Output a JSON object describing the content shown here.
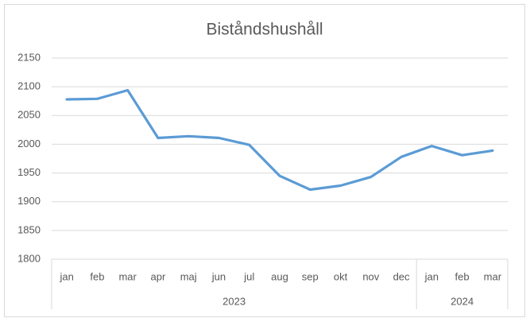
{
  "chart_data": {
    "type": "line",
    "title": "Biståndshushåll",
    "category_groups": [
      {
        "label": "2023",
        "categories": [
          "jan",
          "feb",
          "mar",
          "apr",
          "maj",
          "jun",
          "jul",
          "aug",
          "sep",
          "okt",
          "nov",
          "dec"
        ]
      },
      {
        "label": "2024",
        "categories": [
          "jan",
          "feb",
          "mar"
        ]
      }
    ],
    "values": [
      2078,
      2079,
      2094,
      2011,
      2014,
      2011,
      1999,
      1945,
      1921,
      1928,
      1943,
      1978,
      1997,
      1981,
      1989
    ],
    "color": "#5b9bd5",
    "ylim": [
      1800,
      2150
    ],
    "yticks": [
      1800,
      1850,
      1900,
      1950,
      2000,
      2050,
      2100,
      2150
    ],
    "grid": true
  }
}
